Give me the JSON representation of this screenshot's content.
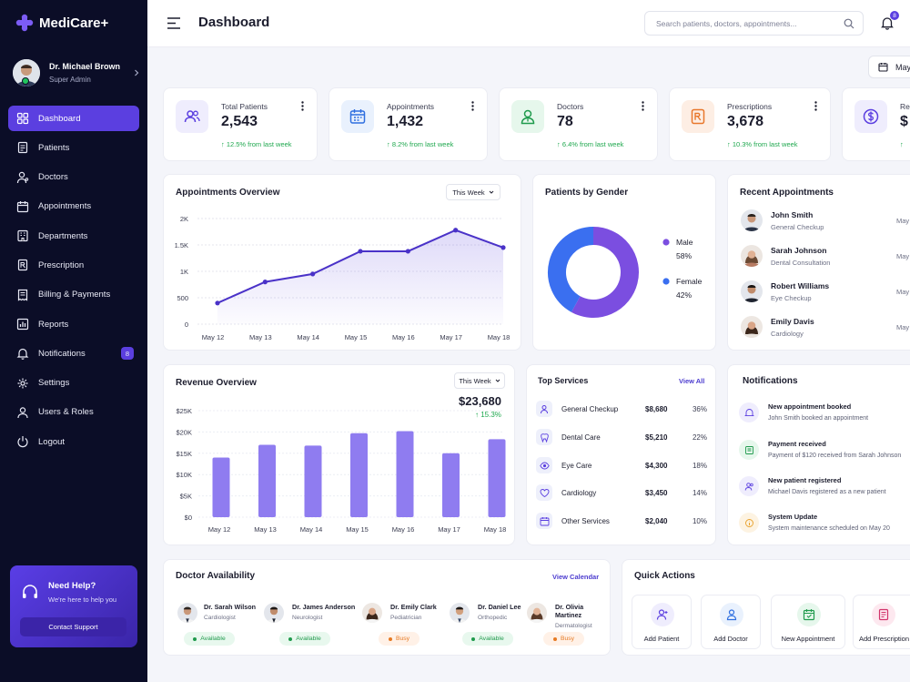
{
  "brand": {
    "name": "MediCare+",
    "accent": "#5b3fe0",
    "sidebar_bg": "#0b0d27"
  },
  "user": {
    "name": "Dr. Michael Brown",
    "role": "Super Admin"
  },
  "nav": [
    {
      "label": "Dashboard",
      "icon": "grid-icon",
      "active": true
    },
    {
      "label": "Patients",
      "icon": "document-icon"
    },
    {
      "label": "Doctors",
      "icon": "stethoscope-icon"
    },
    {
      "label": "Appointments",
      "icon": "calendar-icon"
    },
    {
      "label": "Departments",
      "icon": "building-icon"
    },
    {
      "label": "Prescription",
      "icon": "prescription-icon"
    },
    {
      "label": "Billing & Payments",
      "icon": "receipt-icon"
    },
    {
      "label": "Reports",
      "icon": "bar-chart-icon"
    },
    {
      "label": "Notifications",
      "icon": "bell-icon",
      "badge": "8"
    },
    {
      "label": "Settings",
      "icon": "gear-icon"
    },
    {
      "label": "Users & Roles",
      "icon": "user-icon"
    },
    {
      "label": "Logout",
      "icon": "power-icon"
    }
  ],
  "help": {
    "title": "Need Help?",
    "subtitle": "We're here to help you",
    "button": "Contact Support"
  },
  "header": {
    "title": "Dashboard",
    "search_placeholder": "Search patients, doctors, appointments...",
    "notif_count": "8",
    "date_button": "May"
  },
  "stats": [
    {
      "label": "Total Patients",
      "value": "2,543",
      "delta": "↑ 12.5% from last week",
      "icon": "users-icon",
      "color": "#5b3fe0",
      "bg": "#efedfd"
    },
    {
      "label": "Appointments",
      "value": "1,432",
      "delta": "↑ 8.2% from last week",
      "icon": "calendar-icon",
      "color": "#2f6fe0",
      "bg": "#e9f1fd"
    },
    {
      "label": "Doctors",
      "value": "78",
      "delta": "↑ 6.4% from last week",
      "icon": "doctor-icon",
      "color": "#1f9a4c",
      "bg": "#e6f7ec"
    },
    {
      "label": "Prescriptions",
      "value": "3,678",
      "delta": "↑ 10.3% from last week",
      "icon": "prescription-icon",
      "color": "#e8772b",
      "bg": "#fdeee4"
    },
    {
      "label": "Re",
      "value": "$",
      "delta": "↑",
      "icon": "dollar-icon",
      "color": "#5b3fe0",
      "bg": "#efedfd"
    }
  ],
  "appointments_overview": {
    "title": "Appointments Overview",
    "filter": "This Week"
  },
  "patients_gender": {
    "title": "Patients by Gender"
  },
  "recent_appointments": {
    "title": "Recent Appointments",
    "items": [
      {
        "name": "John Smith",
        "type": "General Checkup",
        "date": "May"
      },
      {
        "name": "Sarah Johnson",
        "type": "Dental Consultation",
        "date": "May"
      },
      {
        "name": "Robert Williams",
        "type": "Eye Checkup",
        "date": "May"
      },
      {
        "name": "Emily Davis",
        "type": "Cardiology",
        "date": "May"
      }
    ]
  },
  "revenue": {
    "title": "Revenue Overview",
    "filter": "This Week",
    "total": "$23,680",
    "delta": "↑ 15.3%"
  },
  "top_services": {
    "title": "Top Services",
    "link": "View All",
    "items": [
      {
        "name": "General Checkup",
        "amount": "$8,680",
        "pct": "36%",
        "icon": "stethoscope-icon"
      },
      {
        "name": "Dental Care",
        "amount": "$5,210",
        "pct": "22%",
        "icon": "tooth-icon"
      },
      {
        "name": "Eye Care",
        "amount": "$4,300",
        "pct": "18%",
        "icon": "eye-icon"
      },
      {
        "name": "Cardiology",
        "amount": "$3,450",
        "pct": "14%",
        "icon": "heart-icon"
      },
      {
        "name": "Other Services",
        "amount": "$2,040",
        "pct": "10%",
        "icon": "calendar-icon"
      }
    ]
  },
  "notifications": {
    "title": "Notifications",
    "items": [
      {
        "title": "New appointment booked",
        "text": "John Smith booked an appointment",
        "icon": "bell-icon",
        "color": "#5b3fe0",
        "bg": "#efedfd"
      },
      {
        "title": "Payment received",
        "text": "Payment of $120 received from Sarah Johnson",
        "icon": "receipt-icon",
        "color": "#1f9a4c",
        "bg": "#e6f7ec"
      },
      {
        "title": "New patient registered",
        "text": "Michael Davis registered as a new patient",
        "icon": "users-icon",
        "color": "#5b3fe0",
        "bg": "#efedfd"
      },
      {
        "title": "System Update",
        "text": "System maintenance scheduled on May 20",
        "icon": "info-icon",
        "color": "#e8a12b",
        "bg": "#fdf3e2"
      }
    ]
  },
  "doctor_availability": {
    "title": "Doctor Availability",
    "link": "View Calendar",
    "items": [
      {
        "name": "Dr. Sarah Wilson",
        "spec": "Cardiologist",
        "status": "Available"
      },
      {
        "name": "Dr. James Anderson",
        "spec": "Neurologist",
        "status": "Available"
      },
      {
        "name": "Dr. Emily Clark",
        "spec": "Pediatrician",
        "status": "Busy"
      },
      {
        "name": "Dr. Daniel Lee",
        "spec": "Orthopedic",
        "status": "Available"
      },
      {
        "name": "Dr. Olivia Martinez",
        "spec": "Dermatologist",
        "status": "Busy"
      }
    ]
  },
  "quick_actions": {
    "title": "Quick Actions",
    "items": [
      {
        "label": "Add Patient",
        "icon": "add-user-icon",
        "color": "#5b3fe0",
        "bg": "#efedfd"
      },
      {
        "label": "Add Doctor",
        "icon": "doctor-icon",
        "color": "#2f6fe0",
        "bg": "#e9f1fd"
      },
      {
        "label": "New Appointment",
        "icon": "calendar-icon",
        "color": "#1f9a4c",
        "bg": "#e6f7ec"
      },
      {
        "label": "Add Prescription",
        "icon": "prescription-icon",
        "color": "#d2336b",
        "bg": "#fde8ef"
      }
    ]
  },
  "chart_data": [
    {
      "type": "area",
      "x": [
        "May 12",
        "May 13",
        "May 14",
        "May 15",
        "May 16",
        "May 17",
        "May 18"
      ],
      "series": [
        {
          "values": [
            400,
            800,
            950,
            1380,
            1380,
            1780,
            1450
          ],
          "color": "#4a32c8"
        }
      ],
      "yticks": [
        "0",
        "500",
        "1K",
        "1.5K",
        "2K"
      ],
      "ylim": [
        0,
        2000
      ],
      "grid": true
    },
    {
      "type": "pie",
      "categories": [
        "Male",
        "Female"
      ],
      "values": [
        58,
        42
      ],
      "labels": [
        "58%",
        "42%"
      ],
      "colors": [
        "#7b4ee0",
        "#3a6ff0"
      ],
      "legend": "right"
    },
    {
      "type": "bar",
      "categories": [
        "May 12",
        "May 13",
        "May 14",
        "May 15",
        "May 16",
        "May 17",
        "May 18"
      ],
      "values": [
        14000,
        17000,
        16800,
        19700,
        20200,
        15000,
        18300
      ],
      "yticks": [
        "$0",
        "$5K",
        "$10K",
        "$15K",
        "$20K",
        "$25K"
      ],
      "ylim": [
        0,
        25000
      ],
      "color": "#8f7cf0",
      "grid": true
    }
  ]
}
